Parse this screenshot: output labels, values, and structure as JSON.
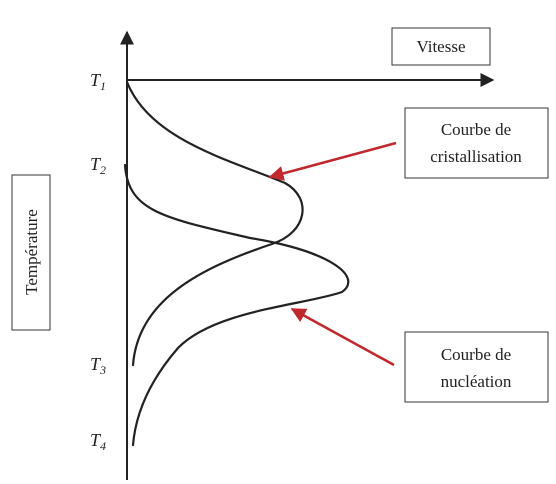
{
  "axes": {
    "y_label": "Température",
    "x_label": "Vitesse"
  },
  "temperatures": [
    {
      "main": "T",
      "sub": "1"
    },
    {
      "main": "T",
      "sub": "2"
    },
    {
      "main": "T",
      "sub": "3"
    },
    {
      "main": "T",
      "sub": "4"
    }
  ],
  "curves": [
    {
      "label": [
        "Courbe de",
        "cristallisation"
      ]
    },
    {
      "label": [
        "Courbe de",
        "nucléation"
      ]
    }
  ]
}
